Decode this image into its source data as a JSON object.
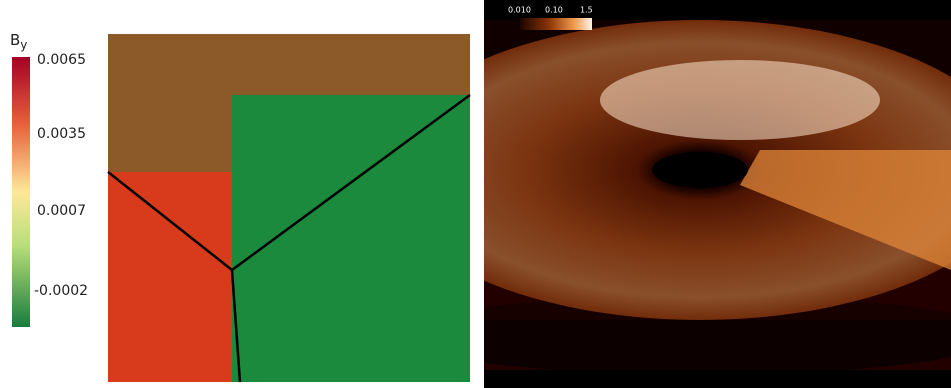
{
  "left_panel": {
    "colorbar": {
      "title": "B",
      "title_subscript": "y",
      "tick_labels": [
        "0.0065",
        "0.0035",
        "0.0007",
        "-0.0002"
      ]
    }
  },
  "right_panel": {
    "colorbar": {
      "tick_labels": [
        "0.010",
        "0.10",
        "1.5"
      ]
    }
  }
}
